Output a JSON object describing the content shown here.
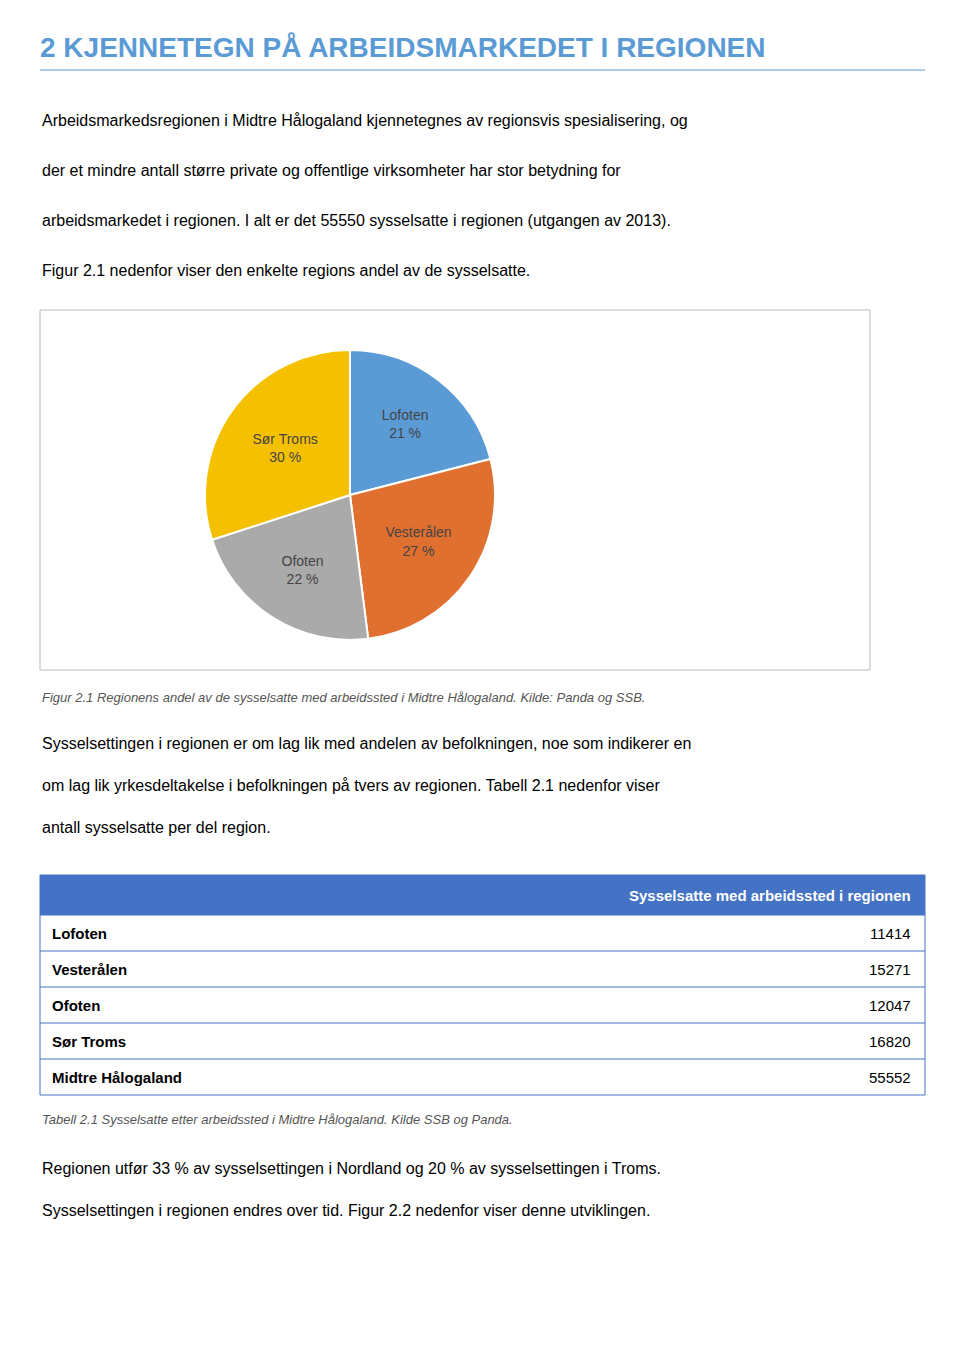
{
  "chart_data": [
    {
      "type": "pie",
      "title": "2 KJENNETEGN PÅ ARBEIDSMARKEDET I REGIONEN",
      "categories": [
        "Lofoten",
        "Vesterålen",
        "Ofoten",
        "Sør Troms"
      ],
      "values": [
        21,
        27,
        22,
        30
      ],
      "value_labels": [
        "21 %",
        "27 %",
        "22 %",
        "30 %"
      ],
      "data_labels": true,
      "colors": [
        "#5B9BD5",
        "#E07030",
        "#AAAAAA",
        "#F5C000"
      ],
      "annotations": [
        "Arbeidsmarkedsregionen i Midtre Hålogaland kjennetegnes av regionsvis spesialisering, og",
        "der et mindre antall større private og offentlige virksomheter har stor betydning for",
        "arbeidsmarkedet i regionen. I alt er det 55550 sysselsatte i regionen (utgangen av 2013).",
        "Figur 2.1 nedenfor viser den enkelte regions andel av de sysselsatte.",
        "Figur 2.1 Regionens andel av de sysselsatte med arbeidssted i Midtre Hålogaland. Kilde: Panda og SSB.",
        "Sysselsettingen i regionen er om lag lik med andelen av befolkningen, noe som indikerer en",
        "om lag lik yrkesdeltakelse i befolkningen på tvers av regionen. Tabell 2.1 nedenfor viser",
        "antall sysselsatte per del region."
      ]
    },
    {
      "type": "table",
      "title": "Sysselsatte med arbeidssted i regionen",
      "categories": [
        "Lofoten",
        "Vesterålen",
        "Ofoten",
        "Sør Troms",
        "Midtre Hålogaland"
      ],
      "values": [
        11414,
        15271,
        12047,
        16820,
        55552
      ],
      "color": "#4472C4",
      "annotations": [
        "Tabell 2.1 Sysselsatte etter arbeidssted i Midtre Hålogaland. Kilde SSB og Panda.",
        "Regionen utfør 33 % av sysselsettingen i Nordland og 20 % av sysselsettingen i Troms.",
        "Sysselsettingen i regionen endres over tid. Figur 2.2 nedenfor viser denne utviklingen."
      ]
    }
  ]
}
